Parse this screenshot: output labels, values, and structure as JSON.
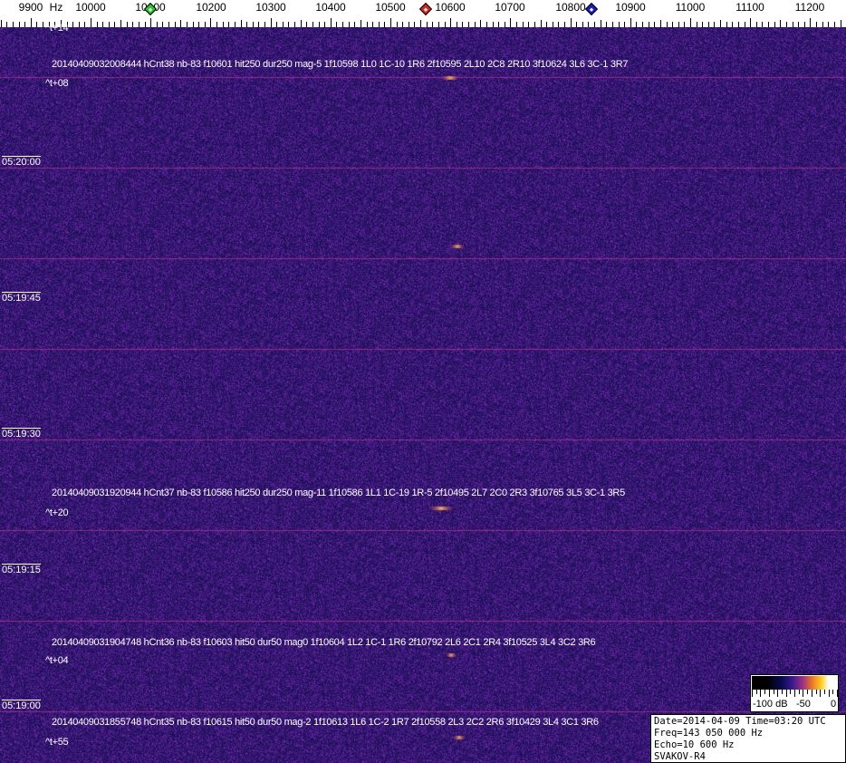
{
  "chart_data": {
    "type": "heatmap",
    "xlabel_unit": "Hz",
    "x_tick_labels": [
      "9900",
      "10000",
      "10100",
      "10200",
      "10300",
      "10400",
      "10500",
      "10600",
      "10700",
      "10800",
      "10900",
      "11000",
      "11100",
      "11200"
    ],
    "x_range": [
      9850,
      11260
    ],
    "y_tick_labels": [
      "05:20:00",
      "05:19:45",
      "05:19:30",
      "05:19:15",
      "05:19:00"
    ],
    "markers": [
      {
        "freq": 10100,
        "color": "#22cc22"
      },
      {
        "freq": 10560,
        "color": "#dd2222"
      },
      {
        "freq": 10835,
        "color": "#1a1acc"
      }
    ],
    "colorbar": {
      "labels": [
        "-100 dB",
        "-50",
        "0"
      ],
      "range": [
        -100,
        0
      ]
    },
    "events": [
      {
        "offset": "^t+14",
        "info": ""
      },
      {
        "info": "20140409032008444 hCnt38 nb-83 f10601 hit250 dur250 mag-5 1f10598 1L0 1C-10 1R6 2f10595 2L10 2C8 2R10 3f10624 3L6 3C-1 3R7",
        "offset": "^t+08",
        "freq": 10601
      },
      {
        "info": "20140409031920944 hCnt37 nb-83 f10586 hit250 dur250 mag-11 1f10586 1L1 1C-19 1R-5 2f10495 2L7 2C0 2R3 3f10765 3L5 3C-1 3R5",
        "offset": "^t+20",
        "freq": 10586
      },
      {
        "info": "20140409031904748 hCnt36 nb-83 f10603 hit50 dur50 mag0 1f10604 1L2 1C-1 1R6 2f10792 2L6 2C1 2R4 3f10525 3L4 3C2 3R6",
        "offset": "^t+04",
        "freq": 10603
      },
      {
        "info": "20140409031855748 hCnt35 nb-83 f10615 hit50 dur50 mag-2 1f10613 1L6 1C-2 1R7 2f10558 2L3 2C2 2R6 3f10429 3L4 3C1 3R6",
        "offset": "^t+55",
        "freq": 10615
      }
    ]
  },
  "info_box": {
    "line1": "Date=2014-04-09 Time=03:20 UTC",
    "line2": "Freq=143 050 000 Hz",
    "line3": "Echo=10 600 Hz",
    "line4": "SVAKOV-R4"
  },
  "colors": {
    "background": "#2a1a78",
    "grid_line": "#b03090",
    "signal": "#ffb030"
  }
}
